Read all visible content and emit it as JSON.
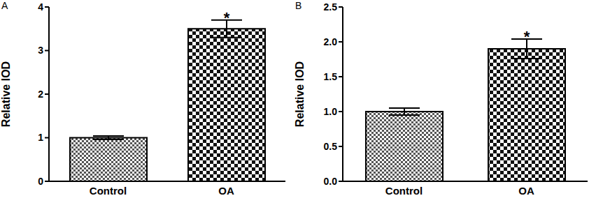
{
  "chart_data": [
    {
      "type": "bar",
      "panel": "A",
      "categories": [
        "Control",
        "OA"
      ],
      "values": [
        1.0,
        3.5
      ],
      "errors": [
        0.04,
        0.2
      ],
      "colors": [
        "#555555",
        "#111111"
      ],
      "y_label": "Relative IOD",
      "ylim": [
        0,
        4
      ],
      "yticks": [
        0,
        1,
        2,
        3,
        4
      ],
      "annotations": [
        {
          "category": "OA",
          "text": "*"
        }
      ]
    },
    {
      "type": "bar",
      "panel": "B",
      "categories": [
        "Control",
        "OA"
      ],
      "values": [
        1.0,
        1.9
      ],
      "errors": [
        0.05,
        0.14
      ],
      "colors": [
        "#555555",
        "#111111"
      ],
      "y_label": "Relative IOD",
      "ylim": [
        0,
        2.5
      ],
      "yticks": [
        {
          "value": 0,
          "label": "0.0"
        },
        0.5,
        {
          "value": 1,
          "label": "1.0"
        },
        1.5,
        {
          "value": 2,
          "label": "2.0"
        },
        2.5
      ],
      "annotations": [
        {
          "category": "OA",
          "text": "*"
        }
      ]
    }
  ]
}
